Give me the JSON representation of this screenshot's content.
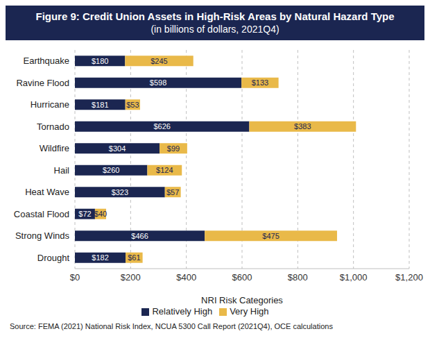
{
  "chart_data": {
    "type": "bar",
    "title": "Figure 9: Credit Union Assets in High-Risk Areas by Natural Hazard Type",
    "subtitle": "(in billions of dollars, 2021Q4)",
    "x_label": "NRI Risk Categories",
    "source": "Source: FEMA (2021) National Risk Index, NCUA 5300 Call Report (2021Q4), OCE calculations",
    "orientation": "horizontal",
    "stacked": true,
    "data_labels": true,
    "grid": true,
    "legend": "bottom",
    "categories": [
      "Earthquake",
      "Ravine Flood",
      "Hurricane",
      "Tornado",
      "Wildfire",
      "Hail",
      "Heat Wave",
      "Coastal Flood",
      "Strong Winds",
      "Drought"
    ],
    "series": [
      {
        "name": "Relatively High",
        "color": "#1b2651",
        "values": [
          180,
          598,
          181,
          626,
          304,
          260,
          323,
          72,
          466,
          182
        ],
        "value_labels": [
          "$180",
          "$598",
          "$181",
          "$626",
          "$304",
          "$260",
          "$323",
          "$72",
          "$466",
          "$182"
        ]
      },
      {
        "name": "Very High",
        "color": "#e9b949",
        "values": [
          245,
          133,
          53,
          383,
          99,
          124,
          57,
          40,
          475,
          61
        ],
        "value_labels": [
          "$245",
          "$133",
          "$53",
          "$383",
          "$99",
          "$124",
          "$57",
          "$40",
          "$475",
          "$61"
        ]
      }
    ],
    "xlim": [
      0,
      1200
    ],
    "xticks": [
      {
        "value": 0,
        "label": "$0"
      },
      {
        "value": 200,
        "label": "$200"
      },
      {
        "value": 400,
        "label": "$400"
      },
      {
        "value": 600,
        "label": "$600"
      },
      {
        "value": 800,
        "label": "$800"
      },
      {
        "value": 1000,
        "label": "$1,000"
      },
      {
        "value": 1200,
        "label": "$1,200"
      }
    ]
  }
}
